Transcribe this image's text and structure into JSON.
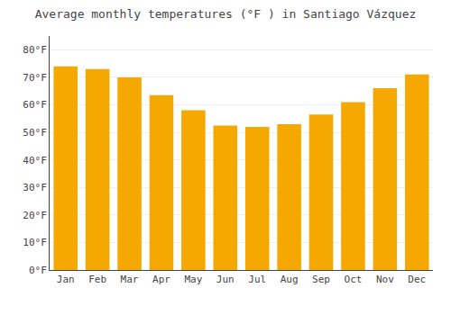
{
  "chart_data": {
    "type": "bar",
    "title": "Average monthly temperatures (°F ) in Santiago Vázquez",
    "categories": [
      "Jan",
      "Feb",
      "Mar",
      "Apr",
      "May",
      "Jun",
      "Jul",
      "Aug",
      "Sep",
      "Oct",
      "Nov",
      "Dec"
    ],
    "values": [
      74,
      73,
      70,
      63.5,
      58,
      52.5,
      52,
      53,
      56.5,
      61,
      66,
      71
    ],
    "color": "#F5A800",
    "ylim": [
      0,
      85
    ],
    "yticks": [
      {
        "value": 0,
        "label": "0°F"
      },
      {
        "value": 10,
        "label": "10°F"
      },
      {
        "value": 20,
        "label": "20°F"
      },
      {
        "value": 30,
        "label": "30°F"
      },
      {
        "value": 40,
        "label": "40°F"
      },
      {
        "value": 50,
        "label": "50°F"
      },
      {
        "value": 60,
        "label": "60°F"
      },
      {
        "value": 70,
        "label": "70°F"
      },
      {
        "value": 80,
        "label": "80°F"
      }
    ],
    "grid": true
  }
}
